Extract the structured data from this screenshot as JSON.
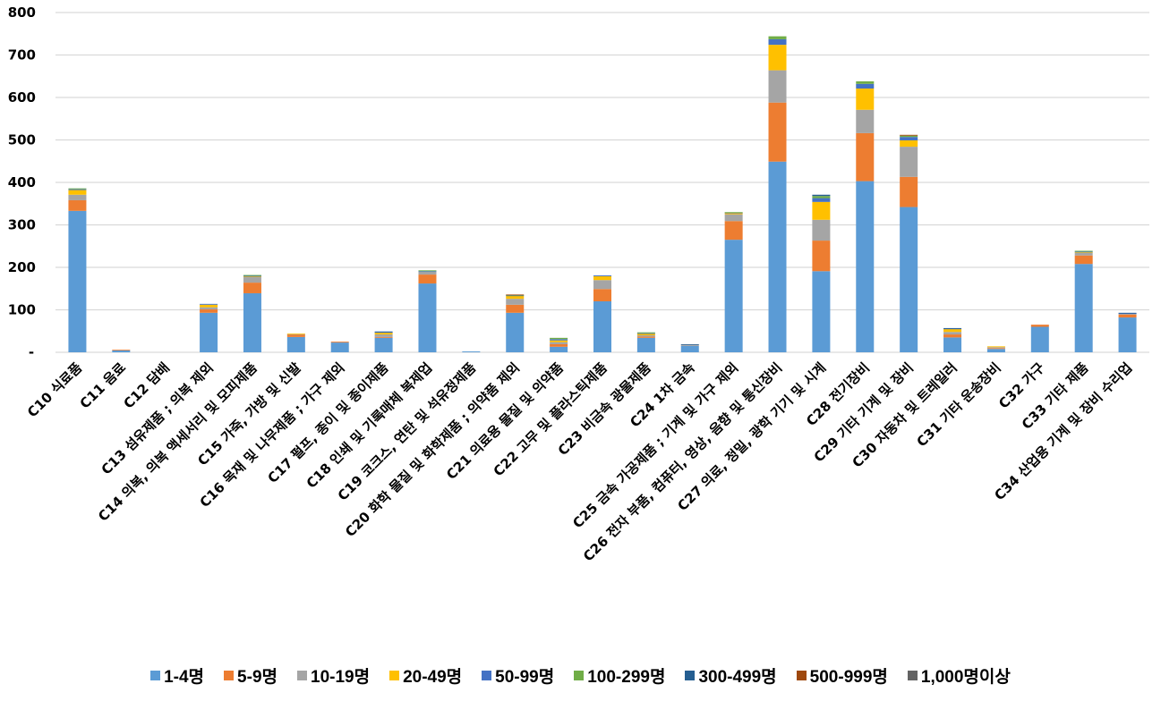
{
  "chart_data": {
    "type": "bar",
    "stacked": true,
    "title": "",
    "xlabel": "",
    "ylabel": "",
    "ylim": [
      0,
      800
    ],
    "yticks": [
      0,
      100,
      200,
      300,
      400,
      500,
      600,
      700,
      800
    ],
    "ytick_labels": [
      "-",
      "100",
      "200",
      "300",
      "400",
      "500",
      "600",
      "700",
      "800"
    ],
    "grid": true,
    "legend_position": "bottom",
    "categories": [
      "C10 식료품",
      "C11 음료",
      "C12 담배",
      "C13 섬유제품 ; 의복 제외",
      "C14 의복, 의복 액세서리 및 모피제품",
      "C15 가죽, 가방 및 신발",
      "C16 목재 및 나무제품 ; 가구 제외",
      "C17 펄프, 종이 및 종이제품",
      "C18 인쇄 및 기록매체 복제업",
      "C19 코크스, 연탄 및 석유정제품",
      "C20 화학 물질 및 화학제품 ; 의약품 제외",
      "C21 의료용 물질 및 의약품",
      "C22 고무 및 플라스틱제품",
      "C23 비금속 광물제품",
      "C24 1차 금속",
      "C25 금속 가공제품 ; 기계 및 가구 제외",
      "C26 전자 부품, 컴퓨터, 영상, 음향 및 통신장비",
      "C27 의료, 정밀, 광학 기기 및 시계",
      "C28 전기장비",
      "C29 기타 기계 및 장비",
      "C30 자동차 및 트레일러",
      "C31 기타 운송장비",
      "C32 가구",
      "C33 기타 제품",
      "C34 산업용 기계 및 장비 수리업"
    ],
    "series": [
      {
        "name": "1-4명",
        "color": "#5B9BD5",
        "values": [
          333,
          5,
          0,
          93,
          139,
          36,
          23,
          34,
          162,
          2,
          93,
          13,
          120,
          34,
          15,
          265,
          449,
          191,
          403,
          342,
          35,
          8,
          60,
          208,
          82
        ]
      },
      {
        "name": "5-9명",
        "color": "#ED7D31",
        "values": [
          25,
          1,
          0,
          8,
          25,
          6,
          2,
          2,
          21,
          0,
          19,
          6,
          29,
          3,
          0,
          44,
          139,
          72,
          113,
          71,
          7,
          2,
          5,
          20,
          7
        ]
      },
      {
        "name": "10-19명",
        "color": "#A5A5A5",
        "values": [
          13,
          0,
          0,
          5,
          13,
          1,
          0,
          6,
          7,
          0,
          14,
          5,
          21,
          3,
          3,
          16,
          76,
          49,
          55,
          71,
          6,
          2,
          0,
          6,
          2
        ]
      },
      {
        "name": "20-49명",
        "color": "#FFC000",
        "values": [
          11,
          0,
          0,
          6,
          2,
          1,
          0,
          4,
          0,
          0,
          7,
          4,
          9,
          4,
          0,
          3,
          60,
          42,
          50,
          15,
          7,
          2,
          0,
          2,
          0
        ]
      },
      {
        "name": "50-99명",
        "color": "#4472C4",
        "values": [
          2,
          0,
          0,
          2,
          1,
          0,
          0,
          2,
          1,
          0,
          1,
          3,
          2,
          1,
          0,
          1,
          13,
          9,
          11,
          8,
          1,
          0,
          0,
          1,
          1
        ]
      },
      {
        "name": "100-299명",
        "color": "#70AD47",
        "values": [
          2,
          0,
          0,
          0,
          2,
          0,
          0,
          0,
          2,
          0,
          1,
          3,
          0,
          2,
          0,
          1,
          7,
          5,
          6,
          3,
          0,
          0,
          0,
          2,
          0
        ]
      },
      {
        "name": "300-499명",
        "color": "#255E91",
        "values": [
          0,
          0,
          0,
          0,
          0,
          0,
          0,
          1,
          0,
          0,
          0,
          0,
          0,
          0,
          1,
          0,
          0,
          3,
          0,
          0,
          1,
          0,
          0,
          0,
          1
        ]
      },
      {
        "name": "500-999명",
        "color": "#9E480E",
        "values": [
          0,
          0,
          0,
          0,
          0,
          0,
          0,
          0,
          0,
          0,
          1,
          0,
          0,
          0,
          0,
          0,
          0,
          0,
          0,
          2,
          0,
          0,
          0,
          0,
          0
        ]
      },
      {
        "name": "1,000명이상",
        "color": "#636363",
        "values": [
          0,
          0,
          0,
          0,
          0,
          0,
          0,
          0,
          0,
          0,
          0,
          0,
          0,
          0,
          0,
          0,
          0,
          0,
          0,
          0,
          0,
          0,
          0,
          0,
          0
        ]
      }
    ]
  }
}
